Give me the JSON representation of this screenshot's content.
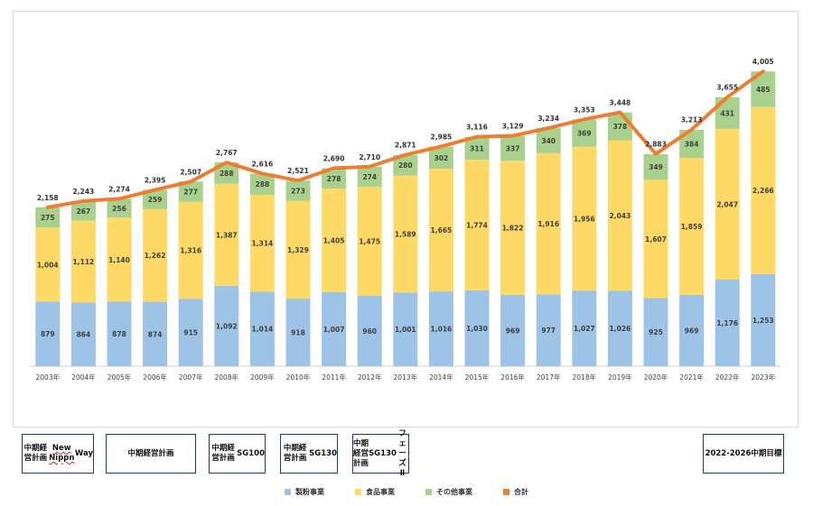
{
  "chart_data": {
    "type": "bar",
    "stacked": true,
    "categories": [
      "2003年",
      "2004年",
      "2005年",
      "2006年",
      "2007年",
      "2008年",
      "2009年",
      "2010年",
      "2011年",
      "2012年",
      "2013年",
      "2014年",
      "2015年",
      "2016年",
      "2017年",
      "2018年",
      "2019年",
      "2020年",
      "2021年",
      "2022年",
      "2023年"
    ],
    "series": [
      {
        "name": "製粉事業",
        "color": "#9dc3e6",
        "values": [
          879,
          864,
          878,
          874,
          915,
          1092,
          1014,
          918,
          1007,
          960,
          1001,
          1016,
          1030,
          969,
          977,
          1027,
          1026,
          925,
          969,
          1176,
          1253
        ]
      },
      {
        "name": "食品事業",
        "color": "#ffd966",
        "values": [
          1004,
          1112,
          1140,
          1262,
          1316,
          1387,
          1314,
          1329,
          1405,
          1475,
          1589,
          1665,
          1774,
          1822,
          1916,
          1956,
          2043,
          1607,
          1859,
          2047,
          2266
        ]
      },
      {
        "name": "その他事業",
        "color": "#a9d18e",
        "values": [
          275,
          267,
          256,
          259,
          277,
          288,
          288,
          273,
          278,
          274,
          280,
          302,
          311,
          337,
          340,
          369,
          378,
          349,
          384,
          431,
          485
        ]
      }
    ],
    "total_line": {
      "name": "合計",
      "color": "#ed7d31",
      "values": [
        2158,
        2243,
        2274,
        2395,
        2507,
        2767,
        2616,
        2521,
        2690,
        2710,
        2871,
        2985,
        3116,
        3129,
        3234,
        3353,
        3448,
        2883,
        3213,
        3655,
        4005
      ]
    },
    "ylim": [
      0,
      4300
    ],
    "grid": false,
    "legend_position": "bottom"
  },
  "plans": [
    {
      "lines": [
        "中期経営計画",
        "New Nippn",
        "Way"
      ],
      "underline_line": 1
    },
    {
      "lines": [
        "中期経営計画"
      ]
    },
    {
      "lines": [
        "中期経営計画",
        "SG100"
      ]
    },
    {
      "lines": [
        "中期経営計画",
        "SG130"
      ]
    },
    {
      "lines": [
        "中期経営計画",
        "SG130",
        "フェーズⅡ"
      ]
    },
    {
      "lines": [
        "2022-2026",
        "中期目標"
      ]
    }
  ]
}
